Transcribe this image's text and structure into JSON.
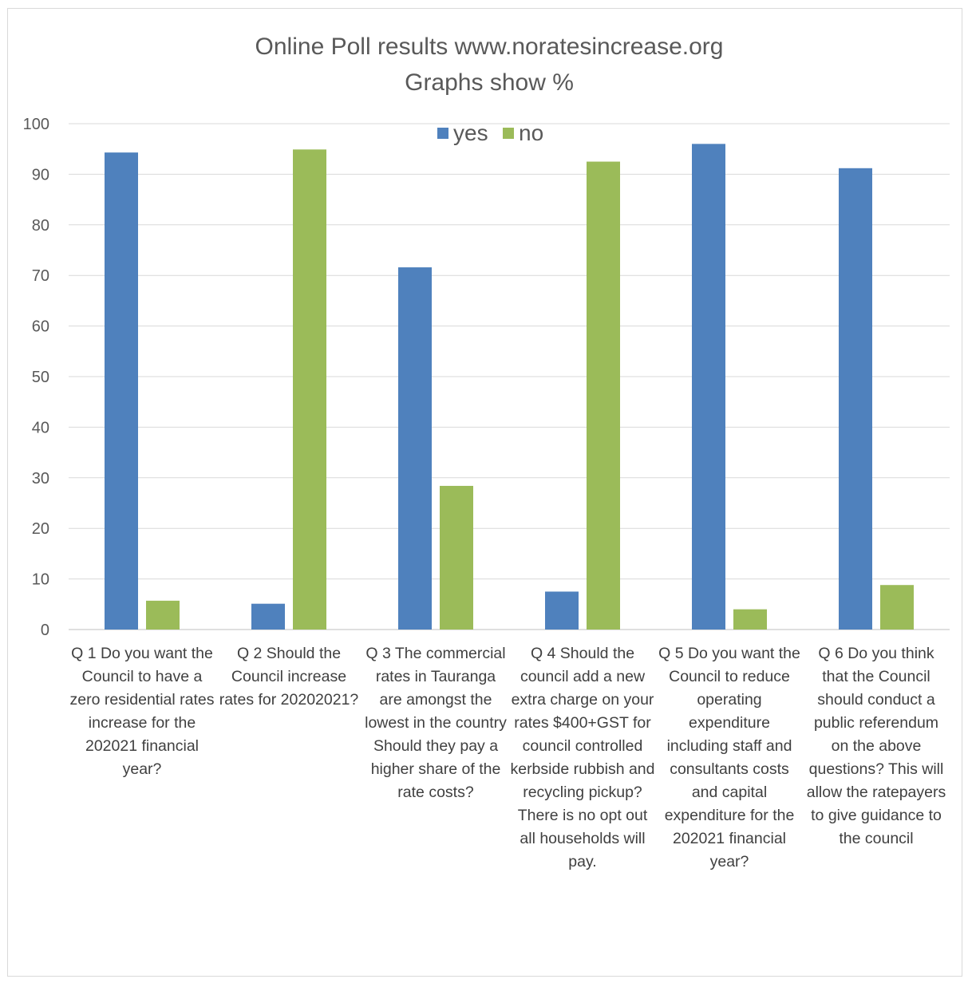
{
  "chart_data": {
    "type": "bar",
    "title": "Online Poll results  www.noratesincrease.org",
    "subtitle": "Graphs show %",
    "categories": [
      "Q 1 Do you want the Council to have a zero residential rates increase for the 202021 financial year?",
      "Q 2 Should the Council increase rates for 20202021?",
      "Q 3 The commercial rates in Tauranga are amongst the lowest in the country Should they pay a higher share of the rate costs?",
      "Q 4 Should the council add a new extra charge on your rates $400+GST for council controlled kerbside rubbish and recycling pickup? There is no opt out all households will pay.",
      "Q 5 Do you want the Council to reduce operating expenditure including staff and consultants costs and capital expenditure for the 202021 financial year?",
      "Q 6 Do you think that the Council should conduct a public referendum on the above questions?  This will allow the ratepayers to give guidance to the council"
    ],
    "series": [
      {
        "name": "yes",
        "color": "#4f81bd",
        "values": [
          94.3,
          5.1,
          71.6,
          7.5,
          96.0,
          91.2
        ]
      },
      {
        "name": "no",
        "color": "#9bbb59",
        "values": [
          5.7,
          94.9,
          28.4,
          92.5,
          4.0,
          8.8
        ]
      }
    ],
    "ylim": [
      0,
      100
    ],
    "yticks": [
      0,
      10,
      20,
      30,
      40,
      50,
      60,
      70,
      80,
      90,
      100
    ],
    "grid": true,
    "legend_position": "top-center",
    "xlabel": "",
    "ylabel": ""
  }
}
